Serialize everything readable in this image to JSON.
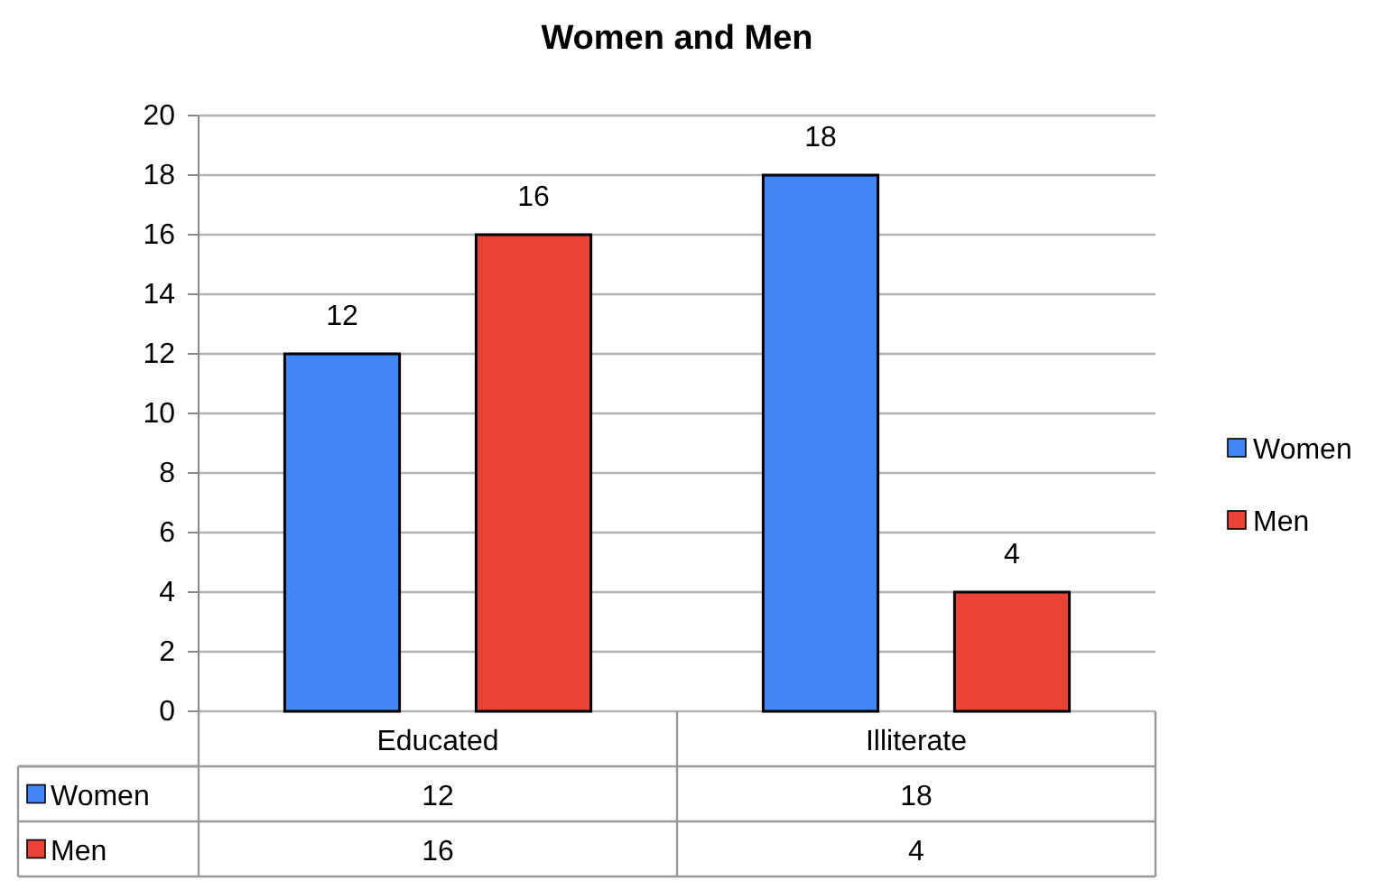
{
  "chart_data": {
    "type": "bar",
    "title": "Women and Men",
    "categories": [
      "Educated",
      "Illiterate"
    ],
    "series": [
      {
        "name": "Women",
        "color": "#4286f5",
        "values": [
          12,
          18
        ],
        "value_labels": [
          "12",
          "18"
        ]
      },
      {
        "name": "Men",
        "color": "#ea4335",
        "values": [
          16,
          4
        ],
        "value_labels": [
          "16",
          "4"
        ]
      }
    ],
    "ylim": [
      0,
      20
    ],
    "yticks": [
      0,
      2,
      4,
      6,
      8,
      10,
      12,
      14,
      16,
      18,
      20
    ],
    "grid": "y",
    "legend": "right",
    "annotations": [
      "12",
      "18",
      "16",
      "4"
    ]
  }
}
